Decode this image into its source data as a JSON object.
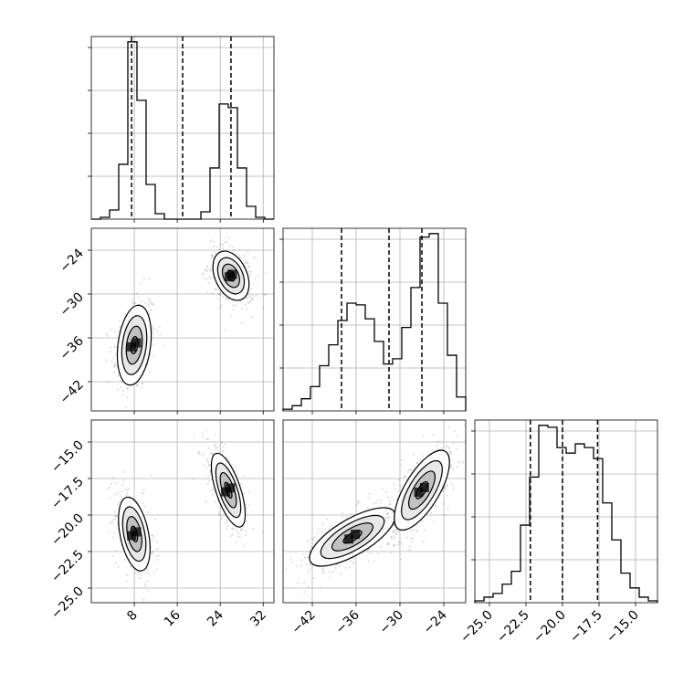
{
  "chart_data": {
    "type": "corner",
    "parameters": [
      {
        "index": 0,
        "range": [
          0,
          34
        ],
        "ticks": [
          8,
          16,
          24,
          32
        ],
        "tick_labels": [
          "8",
          "16",
          "24",
          "32"
        ],
        "quantiles": [
          7.5,
          17.0,
          26.0
        ],
        "hist": {
          "edges": [
            0,
            1.7,
            3.4,
            5.1,
            6.8,
            8.5,
            10.2,
            11.9,
            13.6,
            15.3,
            17.0,
            18.7,
            20.4,
            22.1,
            23.8,
            25.5,
            27.2,
            28.9,
            30.6,
            32.3,
            34.0
          ],
          "counts": [
            0,
            1,
            5,
            30,
            97,
            65,
            19,
            3,
            0,
            0,
            0,
            0,
            4,
            28,
            63,
            61,
            28,
            7,
            1,
            0
          ]
        },
        "modes": [
          {
            "cx": 8.0,
            "cy": 0,
            "sx": 1.4,
            "sy": 0,
            "rho": 0,
            "n": 300
          },
          {
            "cx": 25.0,
            "cy": 0,
            "sx": 1.4,
            "sy": 0,
            "rho": 0,
            "n": 300
          }
        ]
      },
      {
        "index": 1,
        "range": [
          -46,
          -21
        ],
        "ticks": [
          -42,
          -36,
          -30,
          -24
        ],
        "tick_labels": [
          "−42",
          "−36",
          "−30",
          "−24"
        ],
        "quantiles": [
          -38.0,
          -31.5,
          -27.0
        ],
        "hist": {
          "edges": [
            -46,
            -44.75,
            -43.5,
            -42.25,
            -41,
            -39.75,
            -38.5,
            -37.25,
            -36,
            -34.75,
            -33.5,
            -32.25,
            -31,
            -29.75,
            -28.5,
            -27.25,
            -26,
            -24.75,
            -23.5,
            -22.25,
            -21
          ],
          "counts": [
            1,
            3,
            7,
            14,
            26,
            38,
            52,
            62,
            61,
            53,
            40,
            27,
            30,
            48,
            71,
            100,
            102,
            62,
            32,
            8
          ]
        }
      },
      {
        "index": 2,
        "range": [
          -26,
          -13.5
        ],
        "ticks": [
          -25.0,
          -22.5,
          -20.0,
          -17.5,
          -15.0
        ],
        "tick_labels": [
          "−25.0",
          "−22.5",
          "−20.0",
          "−17.5",
          "−15.0"
        ],
        "quantiles": [
          -22.2,
          -20.0,
          -17.6
        ],
        "hist": {
          "edges": [
            -26,
            -25.375,
            -24.75,
            -24.125,
            -23.5,
            -22.875,
            -22.25,
            -21.625,
            -21,
            -20.375,
            -19.75,
            -19.125,
            -18.5,
            -17.875,
            -17.25,
            -16.625,
            -16,
            -15.375,
            -14.75,
            -14.125,
            -13.5
          ],
          "counts": [
            1,
            3,
            5,
            10,
            17,
            42,
            68,
            96,
            95,
            84,
            81,
            86,
            84,
            78,
            54,
            34,
            16,
            8,
            3,
            1
          ]
        }
      }
    ],
    "pairs": [
      {
        "row": 1,
        "col": 0,
        "modes": [
          {
            "cx": 8.0,
            "cy": -37.0,
            "sx": 1.5,
            "sy": 2.6,
            "rho": 0.25,
            "n": 320
          },
          {
            "cx": 26.0,
            "cy": -27.5,
            "sx": 1.6,
            "sy": 1.6,
            "rho": -0.35,
            "n": 320
          }
        ]
      },
      {
        "row": 2,
        "col": 0,
        "modes": [
          {
            "cx": 8.0,
            "cy": -21.3,
            "sx": 1.4,
            "sy": 1.2,
            "rho": -0.4,
            "n": 320
          },
          {
            "cx": 25.5,
            "cy": -18.3,
            "sx": 1.5,
            "sy": 1.2,
            "rho": -0.65,
            "n": 320
          }
        ]
      },
      {
        "row": 2,
        "col": 1,
        "modes": [
          {
            "cx": -36.5,
            "cy": -21.5,
            "sx": 2.8,
            "sy": 0.95,
            "rho": 0.72,
            "n": 420
          },
          {
            "cx": -27.0,
            "cy": -18.3,
            "sx": 1.8,
            "sy": 1.3,
            "rho": 0.7,
            "n": 420
          }
        ]
      }
    ],
    "diag_axes": {
      "show_y_tick_labels": false
    },
    "grid": true
  }
}
